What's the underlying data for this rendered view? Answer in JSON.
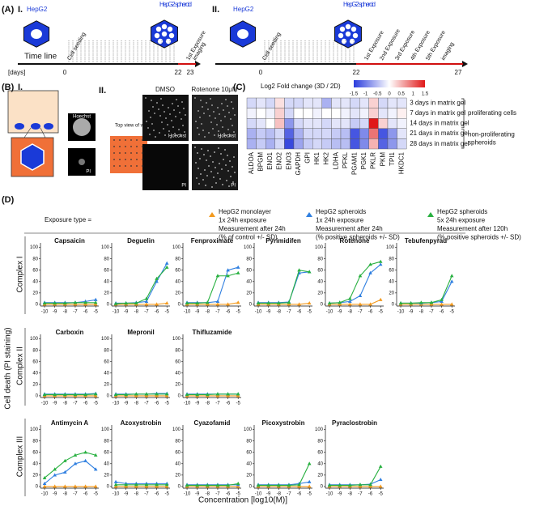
{
  "panel_a": {
    "label": "(A)",
    "parts": [
      {
        "label": "I.",
        "cell": "HepG2",
        "spheroid": "HepG2 spheroid",
        "timeline": "Time line",
        "unit": "[days]",
        "events": [
          "Cell seeding",
          "1st Exposure",
          "imaging"
        ],
        "days": [
          0,
          22,
          23
        ]
      },
      {
        "label": "II.",
        "cell": "HepG2",
        "spheroid": "HepG2 spheroid",
        "events": [
          "Cell seeding",
          "1st Exposure",
          "2nd Exposure",
          "3rd Exposure",
          "4th Exposure",
          "5th Exposure",
          "imaging"
        ],
        "days": [
          0,
          22,
          27
        ]
      }
    ]
  },
  "panel_b": {
    "label": "(B)",
    "part1": {
      "label": "I.",
      "images": [
        "Hoechst",
        "PI"
      ]
    },
    "part2": {
      "label": "II.",
      "top_view": "Top view of well",
      "conditions": [
        {
          "name": "DMSO",
          "images": [
            "Hoechst",
            "PI"
          ]
        },
        {
          "name": "Rotenone 10μM",
          "images": [
            "Hoechst",
            "PI"
          ]
        }
      ]
    }
  },
  "panel_c": {
    "label": "(C)",
    "title": "Log2 Fold change (3D / 2D)",
    "clim": [
      -1.5,
      1.5
    ],
    "cticks": [
      -1.5,
      -1,
      -0.5,
      0,
      0.5,
      1,
      1.5
    ],
    "genes": [
      "ALDOA",
      "BPGM",
      "ENO1",
      "ENO2",
      "ENO3",
      "GAPDH",
      "GPI",
      "HK1",
      "HK2",
      "LDHA",
      "PFKL",
      "PGAM1",
      "PGK1",
      "PKLR",
      "PKM",
      "TPI1",
      "HKDC1"
    ],
    "rows": [
      "3 days in matrix gel",
      "7 days in matrix gel",
      "14 days in matrix gel",
      "21 days in matrix gel",
      "28 days in matrix gel"
    ],
    "values": [
      [
        -0.3,
        -0.2,
        -0.3,
        0.2,
        -0.3,
        -0.3,
        -0.2,
        -0.2,
        -0.6,
        -0.2,
        -0.2,
        -0.3,
        -0.2,
        0.3,
        -0.3,
        -0.2,
        -0.2
      ],
      [
        -0.1,
        0,
        -0.1,
        0.3,
        -0.3,
        0,
        0,
        -0.1,
        0,
        0,
        -0.1,
        -0.2,
        -0.1,
        0.3,
        -0.2,
        -0.1,
        0.1
      ],
      [
        -0.3,
        -0.2,
        0,
        0.4,
        -0.8,
        -0.3,
        -0.2,
        -0.2,
        -0.3,
        -0.2,
        -0.2,
        -0.4,
        -0.3,
        1.5,
        0.3,
        -0.2,
        -0.1
      ],
      [
        -0.6,
        -0.4,
        -0.5,
        -0.3,
        -1.2,
        -0.6,
        -0.3,
        -0.3,
        -0.3,
        -0.4,
        -0.5,
        -1.3,
        -0.9,
        0.9,
        -1.3,
        -0.8,
        -0.2
      ],
      [
        -0.6,
        -0.4,
        -0.6,
        -0.3,
        -1.4,
        -0.7,
        -0.4,
        -0.3,
        -0.4,
        -0.5,
        -0.5,
        -1.3,
        -0.9,
        0.5,
        -1.2,
        -0.8,
        -0.3
      ]
    ],
    "groups": [
      [
        "proliferating cells"
      ],
      [
        "non-proliferating",
        "spheroids"
      ]
    ]
  },
  "panel_d": {
    "label": "(D)",
    "exposure": "Exposure type =",
    "y_label": "Cell death (PI staining)",
    "x_label": "Concentration [log10(M)]",
    "xlim": [
      -10.4,
      -4.7
    ],
    "ylim": [
      -3,
      108
    ],
    "xticks": [
      -10,
      -9,
      -8,
      -7,
      -6,
      -5
    ],
    "yticks": [
      0,
      20,
      40,
      60,
      80,
      100
    ],
    "legend": [
      {
        "color": "#f39a1e",
        "lines": [
          "HepG2 monolayer",
          "1x 24h exposure",
          "Measurement after 24h",
          "(% of control +/- SD)"
        ]
      },
      {
        "color": "#2f7fe0",
        "lines": [
          "HepG2 spheroids",
          "1x 24h exposure",
          "Measurement after 24h",
          "(% positive spheroids +/- SD)"
        ]
      },
      {
        "color": "#28b040",
        "lines": [
          "HepG2 spheroids",
          "5x 24h exposure",
          "Measurement after 120h",
          "(% positive spheroids +/- SD)"
        ]
      }
    ],
    "groups": [
      {
        "label": "Complex I",
        "charts": [
          {
            "title": "Capsaicin",
            "values": [
              [
                0,
                0,
                0,
                0,
                0,
                0
              ],
              [
                3,
                3,
                3,
                3,
                5,
                8
              ],
              [
                2,
                2,
                2,
                3,
                3,
                3
              ]
            ]
          },
          {
            "title": "Deguelin",
            "values": [
              [
                0,
                0,
                0,
                0,
                0,
                2
              ],
              [
                2,
                2,
                3,
                5,
                40,
                72
              ],
              [
                1,
                2,
                2,
                10,
                45,
                65
              ]
            ]
          },
          {
            "title": "Fenproximate",
            "values": [
              [
                0,
                0,
                0,
                0,
                0,
                3
              ],
              [
                3,
                3,
                3,
                5,
                60,
                65
              ],
              [
                2,
                2,
                3,
                50,
                50,
                55
              ]
            ]
          },
          {
            "title": "Pyrimidifen",
            "values": [
              [
                0,
                0,
                0,
                0,
                0,
                2
              ],
              [
                3,
                3,
                3,
                4,
                55,
                57
              ],
              [
                2,
                2,
                2,
                3,
                60,
                57
              ]
            ]
          },
          {
            "title": "Rotenone",
            "values": [
              [
                0,
                0,
                0,
                0,
                0,
                8
              ],
              [
                2,
                3,
                5,
                15,
                55,
                70
              ],
              [
                2,
                3,
                10,
                50,
                70,
                75
              ]
            ]
          },
          {
            "title": "Tebufenpyrad",
            "values": [
              [
                0,
                0,
                0,
                0,
                0,
                0
              ],
              [
                2,
                2,
                2,
                3,
                5,
                40
              ],
              [
                2,
                2,
                3,
                3,
                8,
                50
              ]
            ]
          }
        ]
      },
      {
        "label": "Complex II",
        "charts": [
          {
            "title": "Carboxin",
            "values": [
              [
                0,
                0,
                0,
                0,
                0,
                0
              ],
              [
                3,
                3,
                3,
                3,
                3,
                4
              ],
              [
                2,
                2,
                2,
                2,
                2,
                3
              ]
            ]
          },
          {
            "title": "Mepronil",
            "values": [
              [
                0,
                0,
                0,
                0,
                0,
                0
              ],
              [
                3,
                3,
                3,
                3,
                4,
                4
              ],
              [
                2,
                2,
                3,
                3,
                3,
                3
              ]
            ]
          },
          {
            "title": "Thifluzamide",
            "values": [
              [
                0,
                0,
                0,
                0,
                0,
                0
              ],
              [
                3,
                3,
                3,
                3,
                3,
                3
              ],
              [
                2,
                2,
                2,
                3,
                3,
                3
              ]
            ]
          }
        ]
      },
      {
        "label": "Complex III",
        "charts": [
          {
            "title": "Antimycin A",
            "values": [
              [
                0,
                0,
                0,
                0,
                0,
                0
              ],
              [
                5,
                20,
                25,
                40,
                45,
                30
              ],
              [
                15,
                30,
                45,
                55,
                60,
                55
              ]
            ]
          },
          {
            "title": "Azoxystrobin",
            "values": [
              [
                0,
                0,
                0,
                0,
                0,
                0
              ],
              [
                8,
                5,
                5,
                5,
                5,
                5
              ],
              [
                3,
                3,
                3,
                3,
                3,
                3
              ]
            ]
          },
          {
            "title": "Cyazofamid",
            "values": [
              [
                0,
                0,
                0,
                0,
                0,
                0
              ],
              [
                3,
                3,
                3,
                3,
                3,
                3
              ],
              [
                2,
                2,
                2,
                2,
                2,
                5
              ]
            ]
          },
          {
            "title": "Picoxystrobin",
            "values": [
              [
                0,
                0,
                0,
                0,
                0,
                0
              ],
              [
                3,
                3,
                3,
                3,
                5,
                8
              ],
              [
                2,
                2,
                2,
                2,
                3,
                40
              ]
            ]
          },
          {
            "title": "Pyraclostrobin",
            "values": [
              [
                0,
                0,
                0,
                0,
                0,
                0
              ],
              [
                3,
                3,
                3,
                3,
                4,
                12
              ],
              [
                2,
                2,
                2,
                3,
                3,
                35
              ]
            ]
          }
        ]
      }
    ]
  }
}
